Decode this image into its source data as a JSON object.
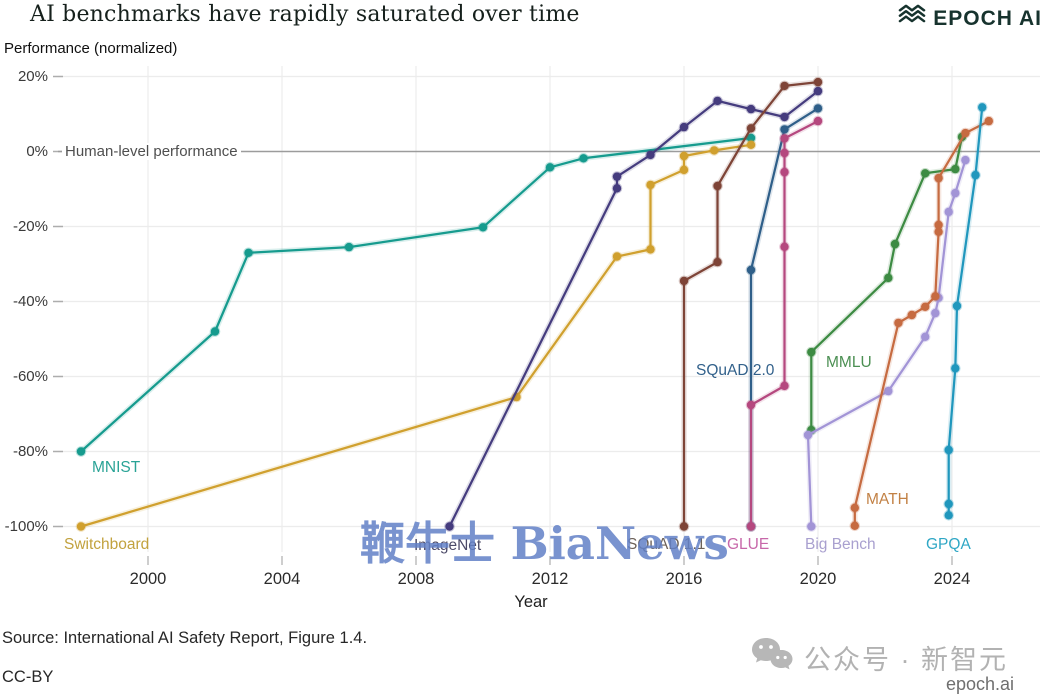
{
  "header": {
    "title": "AI benchmarks have rapidly saturated over time",
    "logo": {
      "icon": "epoch-waves-icon",
      "text": "EPOCH AI",
      "color": "#17332e"
    }
  },
  "chart_data": {
    "type": "line",
    "title": "AI benchmarks have rapidly saturated over time",
    "xlabel": "Year",
    "ylabel": "Performance (normalized)",
    "grid": true,
    "xlim": [
      1997.6,
      2025.6
    ],
    "ylim": [
      -104,
      22
    ],
    "zero_line": {
      "value": 0,
      "annotation": "Human-level performance",
      "color": "#9c9c9c"
    },
    "x_axis": {
      "label": "Year",
      "ticks": [
        {
          "year": 2000,
          "label": "2000"
        },
        {
          "year": 2004,
          "label": "2004"
        },
        {
          "year": 2008,
          "label": "2008"
        },
        {
          "year": 2012,
          "label": "2012"
        },
        {
          "year": 2016,
          "label": "2016"
        },
        {
          "year": 2020,
          "label": "2020"
        },
        {
          "year": 2024,
          "label": "2024"
        }
      ]
    },
    "y_axis": {
      "label": "Performance (normalized)",
      "ticks": [
        {
          "value": 20,
          "label": "20%"
        },
        {
          "value": 0,
          "label": "0%"
        },
        {
          "value": -20,
          "label": "-20%"
        },
        {
          "value": -40,
          "label": "-40%"
        },
        {
          "value": -60,
          "label": "-60%"
        },
        {
          "value": -80,
          "label": "-80%"
        },
        {
          "value": -100,
          "label": "-100%"
        }
      ]
    },
    "series": [
      {
        "name": "MNIST",
        "label": "MNIST",
        "color": "#169b8e",
        "label_color": "#2aa396",
        "points": [
          [
            1998,
            -80
          ],
          [
            2002,
            -48
          ],
          [
            2003,
            -27
          ],
          [
            2006,
            -25.5
          ],
          [
            2010,
            -20.2
          ],
          [
            2012,
            -4.2
          ],
          [
            2013,
            -1.8
          ],
          [
            2018,
            3.6
          ]
        ]
      },
      {
        "name": "Switchboard",
        "label": "Switchboard",
        "color": "#d0a02e",
        "label_color": "#c2a23e",
        "points": [
          [
            1998,
            -100
          ],
          [
            2011,
            -65.5
          ],
          [
            2014,
            -28
          ],
          [
            2015,
            -26.1
          ],
          [
            2015,
            -8.9
          ],
          [
            2016,
            -4.9
          ],
          [
            2016,
            -1.2
          ],
          [
            2016.9,
            0.3
          ],
          [
            2018,
            1.8
          ]
        ]
      },
      {
        "name": "ImageNet",
        "label": "ImageNet",
        "color": "#453c7e",
        "label_color": "#4c4a68",
        "points": [
          [
            2009,
            -100
          ],
          [
            2014,
            -9.8
          ],
          [
            2014,
            -6.7
          ],
          [
            2015,
            -0.9
          ],
          [
            2016,
            6.5
          ],
          [
            2017,
            13.5
          ],
          [
            2018,
            11.3
          ],
          [
            2019,
            9.2
          ],
          [
            2020,
            16.1
          ]
        ]
      },
      {
        "name": "SQuAD 1.1",
        "label": "SQuAD 1.1",
        "color": "#7e4437",
        "label_color": "#6c6158",
        "points": [
          [
            2016,
            -100
          ],
          [
            2016,
            -34.5
          ],
          [
            2017,
            -29.5
          ],
          [
            2017,
            -9.2
          ],
          [
            2018,
            6.2
          ],
          [
            2019,
            17.5
          ],
          [
            2020,
            18.5
          ]
        ]
      },
      {
        "name": "SQuAD 2.0",
        "label": "SQuAD 2.0",
        "color": "#2f5f89",
        "label_color": "#32618b",
        "points": [
          [
            2018,
            -100
          ],
          [
            2018,
            -31.6
          ],
          [
            2019,
            5.9
          ],
          [
            2020,
            11.5
          ]
        ]
      },
      {
        "name": "GLUE",
        "label": "GLUE",
        "color": "#b5487f",
        "label_color": "#c767a9",
        "points": [
          [
            2018,
            -100
          ],
          [
            2018,
            -67.6
          ],
          [
            2019,
            -62.5
          ],
          [
            2019,
            -25.4
          ],
          [
            2019,
            -5.5
          ],
          [
            2019,
            -0.4
          ],
          [
            2019,
            3.5
          ],
          [
            2020,
            8.1
          ]
        ]
      },
      {
        "name": "MMLU",
        "label": "MMLU",
        "color": "#3d8b43",
        "label_color": "#4b8f52",
        "points": [
          [
            2019.8,
            -74.3
          ],
          [
            2019.8,
            -53.5
          ],
          [
            2022.1,
            -33.7
          ],
          [
            2022.3,
            -24.7
          ],
          [
            2023.2,
            -5.8
          ],
          [
            2024.1,
            -4.7
          ],
          [
            2024.3,
            3.9
          ]
        ]
      },
      {
        "name": "Big Bench",
        "label": "Big Bench",
        "color": "#a294d6",
        "label_color": "#a9a0cf",
        "points": [
          [
            2019.8,
            -100
          ],
          [
            2019.7,
            -75.6
          ],
          [
            2022.1,
            -63.9
          ],
          [
            2023.2,
            -49.4
          ],
          [
            2023.5,
            -43.1
          ],
          [
            2023.6,
            -39
          ],
          [
            2023.9,
            -16.1
          ],
          [
            2024.1,
            -11.1
          ],
          [
            2024.4,
            -2.3
          ]
        ]
      },
      {
        "name": "MATH",
        "label": "MATH",
        "color": "#c66b41",
        "label_color": "#c28145",
        "points": [
          [
            2021.1,
            -99.8
          ],
          [
            2021.1,
            -95
          ],
          [
            2022.4,
            -45.7
          ],
          [
            2022.8,
            -43.6
          ],
          [
            2023.2,
            -41.4
          ],
          [
            2023.5,
            -38.6
          ],
          [
            2023.6,
            -21.4
          ],
          [
            2023.6,
            -19.6
          ],
          [
            2023.6,
            -7.1
          ],
          [
            2024.4,
            4.9
          ],
          [
            2025.1,
            8.1
          ]
        ]
      },
      {
        "name": "GPQA",
        "label": "GPQA",
        "color": "#2097bd",
        "label_color": "#2fa7c5",
        "points": [
          [
            2023.9,
            -97
          ],
          [
            2023.9,
            -94
          ],
          [
            2023.9,
            -79.6
          ],
          [
            2024.1,
            -57.8
          ],
          [
            2024.15,
            -41.2
          ],
          [
            2024.7,
            -6.3
          ],
          [
            2024.9,
            11.8
          ]
        ]
      }
    ]
  },
  "footer": {
    "source": "Source: International AI Safety Report, Figure 1.4.",
    "license": "CC-BY",
    "brand": "epoch.ai"
  },
  "watermarks": {
    "center_text": "鞭牛士 BiaNews",
    "bottom_right_text": "公众号 · 新智元",
    "bottom_right_icon": "wechat-icon"
  }
}
